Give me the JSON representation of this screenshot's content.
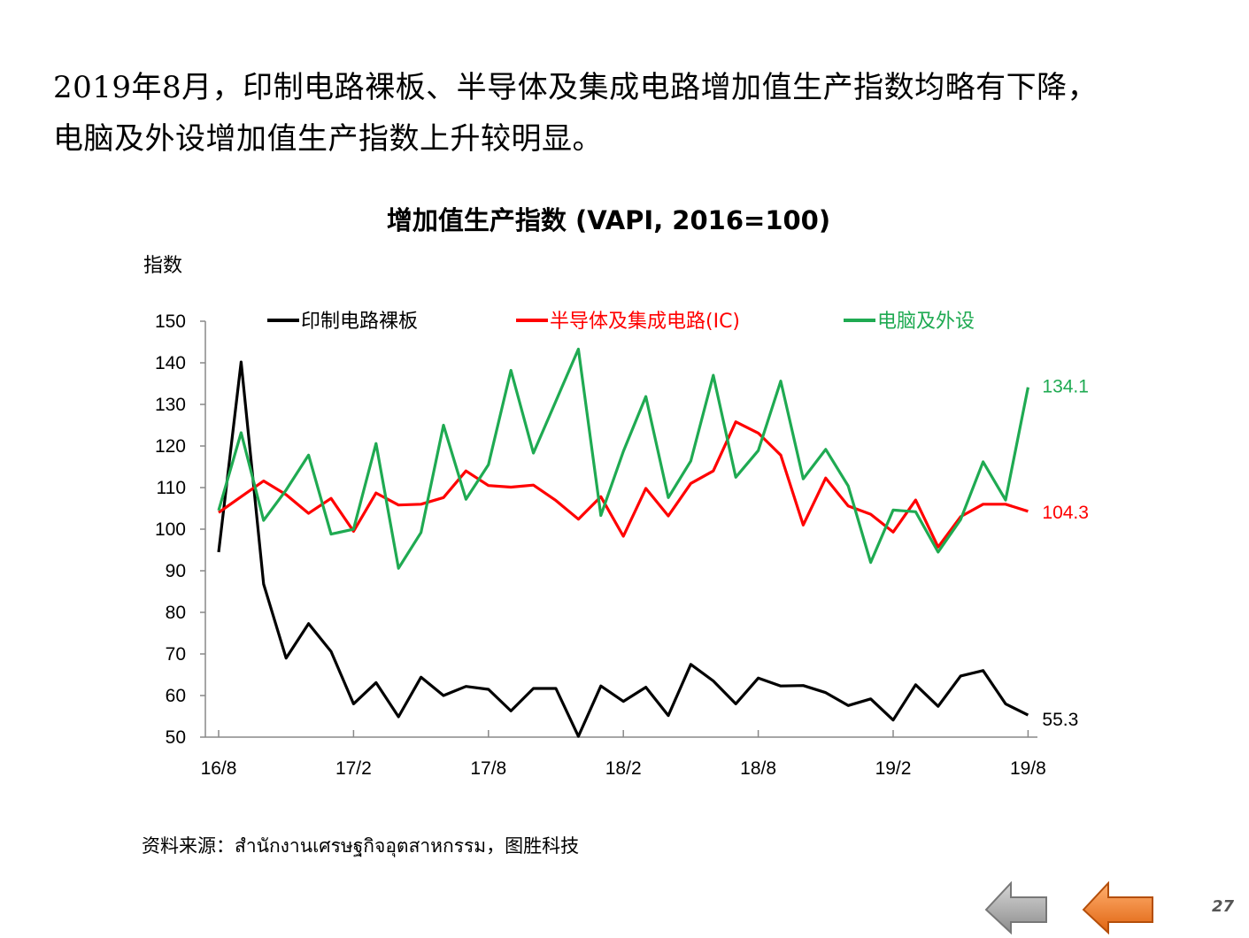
{
  "slide": {
    "headline_line1": "2019年8月，印制电路裸板、半导体及集成电路增加值生产指数均略有下降，",
    "headline_line2": "电脑及外设增加值生产指数上升较明显。",
    "source": "资料来源：สำนักงานเศรษฐกิจอุตสาหกรรม，图胜科技",
    "page_number": "27",
    "nav_prev_icon": "arrow-left-gray",
    "nav_next_icon": "arrow-left-orange"
  },
  "chart_data": {
    "type": "line",
    "title": "增加值生产指数 (VAPI, 2016=100)",
    "ylabel": "指数",
    "xlabel": "",
    "ylim": [
      50,
      150
    ],
    "yticks": [
      50,
      60,
      70,
      80,
      90,
      100,
      110,
      120,
      130,
      140,
      150
    ],
    "x_tick_labels": [
      "16/8",
      "17/2",
      "17/8",
      "18/2",
      "18/8",
      "19/2",
      "19/8"
    ],
    "x": [
      "16/8",
      "16/9",
      "16/10",
      "16/11",
      "16/12",
      "17/1",
      "17/2",
      "17/3",
      "17/4",
      "17/5",
      "17/6",
      "17/7",
      "17/8",
      "17/9",
      "17/10",
      "17/11",
      "17/12",
      "18/1",
      "18/2",
      "18/3",
      "18/4",
      "18/5",
      "18/6",
      "18/7",
      "18/8",
      "18/9",
      "18/10",
      "18/11",
      "18/12",
      "19/1",
      "19/2",
      "19/3",
      "19/4",
      "19/5",
      "19/6",
      "19/7",
      "19/8"
    ],
    "grid": false,
    "legend_position": "top",
    "series": [
      {
        "name": "印制电路裸板",
        "color": "#000000",
        "values": [
          94.5,
          140.2,
          86.8,
          69.0,
          77.3,
          70.6,
          58.0,
          63.1,
          54.9,
          64.4,
          60.0,
          62.2,
          61.5,
          56.3,
          61.7,
          61.7,
          50.2,
          62.3,
          58.6,
          62.0,
          55.2,
          67.5,
          63.5,
          58.0,
          64.2,
          62.3,
          62.4,
          60.7,
          57.6,
          59.2,
          54.1,
          62.6,
          57.4,
          64.7,
          66.0,
          58.0,
          55.3
        ],
        "end_label": "55.3"
      },
      {
        "name": "半导体及集成电路(IC)",
        "color": "#ff0000",
        "values": [
          104.0,
          107.8,
          111.6,
          108.3,
          103.8,
          107.4,
          99.5,
          108.7,
          105.8,
          106.0,
          107.6,
          114.0,
          110.5,
          110.1,
          110.6,
          106.9,
          102.4,
          107.8,
          98.3,
          109.8,
          103.2,
          111.0,
          114.0,
          125.8,
          123.1,
          117.8,
          101.0,
          112.3,
          105.6,
          103.6,
          99.3,
          107.0,
          95.7,
          103.0,
          106.0,
          106.0,
          104.3
        ],
        "end_label": "104.3"
      },
      {
        "name": "电脑及外设",
        "color": "#1faa52",
        "values": [
          104.5,
          123.2,
          102.1,
          109.4,
          117.8,
          98.8,
          100.0,
          120.6,
          90.6,
          99.2,
          125.0,
          107.2,
          115.5,
          138.2,
          118.3,
          130.8,
          143.3,
          103.3,
          118.7,
          131.9,
          107.6,
          116.4,
          137.0,
          112.5,
          118.9,
          135.6,
          112.1,
          119.2,
          110.4,
          92.0,
          104.6,
          104.2,
          94.5,
          102.3,
          116.2,
          107.0,
          134.1
        ],
        "end_label": "134.1"
      }
    ]
  }
}
